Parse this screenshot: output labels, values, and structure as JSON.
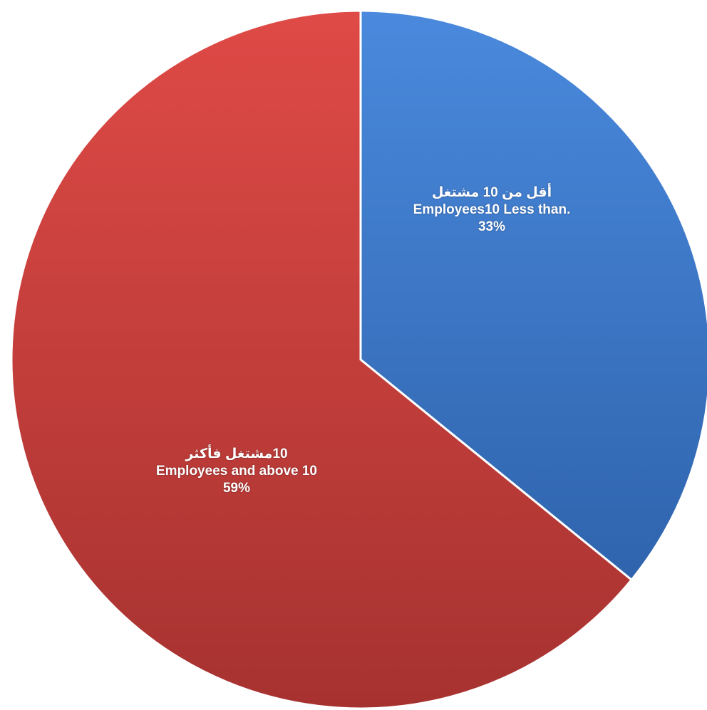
{
  "chart_data": {
    "type": "pie",
    "title": "",
    "slices": [
      {
        "label_ar": "أقل من 10 مشتغل",
        "label_en": ".Employees10 Less than",
        "value": 33,
        "value_label": "33%",
        "color": "#3D7BD0"
      },
      {
        "label_ar": "10مشتغل فأكثر",
        "label_en": "Employees and above 10",
        "value": 59,
        "value_label": "59%",
        "color": "#D1413E"
      }
    ],
    "start_angle_deg": 0,
    "direction": "clockwise"
  }
}
